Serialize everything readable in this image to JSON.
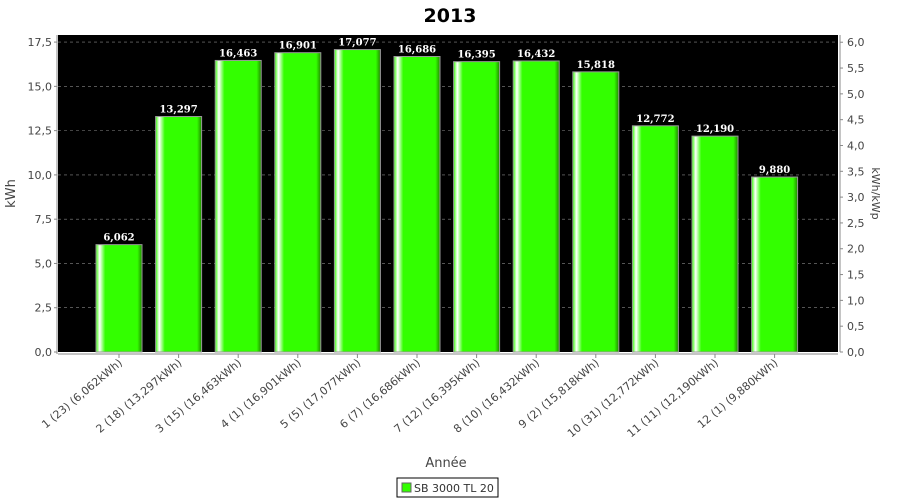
{
  "chart_data": {
    "type": "bar",
    "title": "2013",
    "xlabel": "Année",
    "ylabel": "kWh",
    "y2label": "kWh/kWp",
    "ylim": [
      0,
      17.9
    ],
    "y2lim": [
      0,
      6.14
    ],
    "yticks": [
      "0,0",
      "2,5",
      "5,0",
      "7,5",
      "10,0",
      "12,5",
      "15,0",
      "17,5"
    ],
    "y2ticks": [
      "0,0",
      "0,5",
      "1,0",
      "1,5",
      "2,0",
      "2,5",
      "3,0",
      "3,5",
      "4,0",
      "4,5",
      "5,0",
      "5,5",
      "6,0"
    ],
    "grid": true,
    "legend_placement": "bottom",
    "categories": [
      "1 (23)  (6,062kWh)",
      "2 (18)  (13,297kWh)",
      "3 (15)  (16,463kWh)",
      "4 (1)  (16,901kWh)",
      "5 (5)  (17,077kWh)",
      "6 (7)  (16,686kWh)",
      "7 (12)  (16,395kWh)",
      "8 (10)  (16,432kWh)",
      "9 (2)  (15,818kWh)",
      "10 (31)  (12,772kWh)",
      "11 (11)  (12,190kWh)",
      "12 (1)  (9,880kWh)"
    ],
    "series": [
      {
        "name": "SB 3000 TL 20",
        "color": "#33ff00",
        "values": [
          6.062,
          13.297,
          16.463,
          16.901,
          17.077,
          16.686,
          16.395,
          16.432,
          15.818,
          12.772,
          12.19,
          9.88
        ],
        "labels": [
          "6,062",
          "13,297",
          "16,463",
          "16,901",
          "17,077",
          "16,686",
          "16,395",
          "16,432",
          "15,818",
          "12,772",
          "12,190",
          "9,880"
        ]
      }
    ],
    "plot_background": "#000000"
  }
}
